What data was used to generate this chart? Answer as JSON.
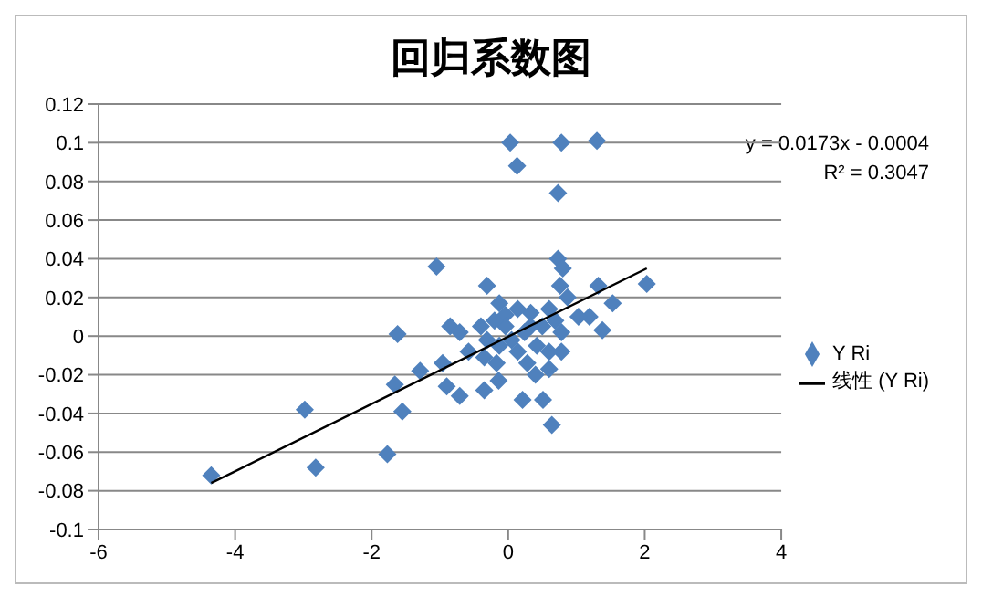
{
  "chart_data": {
    "type": "scatter",
    "title": "回归系数图",
    "xlim": [
      -6,
      4
    ],
    "xticks": [
      -6,
      -4,
      -2,
      0,
      2,
      4
    ],
    "ylim": [
      -0.1,
      0.12
    ],
    "yticks": [
      -0.1,
      -0.08,
      -0.06,
      -0.04,
      -0.02,
      0,
      0.02,
      0.04,
      0.06,
      0.08,
      0.1,
      0.12
    ],
    "grid": "y",
    "legend": "right",
    "annotations": [
      "y = 0.0173x - 0.0004",
      "R² = 0.3047"
    ],
    "series": [
      {
        "name": "Y Ri",
        "marker": "diamond",
        "color": "#4f81bd",
        "x": [
          -4.35,
          -2.98,
          -2.82,
          -1.77,
          -1.62,
          -1.66,
          -1.55,
          -1.29,
          -1.05,
          -0.31,
          0.03,
          0.13,
          0.78,
          1.3,
          0.73,
          0.73,
          0.8,
          0.76,
          1.32,
          2.03,
          1.53,
          1.38,
          1.19,
          1.03,
          0.87,
          0.21,
          0.51,
          0.64,
          0.78,
          0.6,
          0.4,
          0.28,
          -0.17,
          -0.35,
          -0.71,
          -0.9,
          -0.96,
          -0.85,
          -0.71,
          -0.58,
          -0.14,
          -0.35,
          -0.13,
          -0.04,
          0.14,
          0.33,
          0.6,
          0.5,
          0.69,
          0.78,
          0.24,
          0.05,
          -0.13,
          -0.31,
          0.14,
          0.42,
          0.6,
          -0.04,
          0.33,
          -0.4,
          -0.2
        ],
        "values": [
          -0.072,
          -0.038,
          -0.068,
          -0.061,
          0.001,
          -0.025,
          -0.039,
          -0.018,
          0.036,
          0.026,
          0.1,
          0.088,
          0.1,
          0.101,
          0.074,
          0.04,
          0.035,
          0.026,
          0.026,
          0.027,
          0.017,
          0.003,
          0.01,
          0.01,
          0.02,
          -0.033,
          -0.033,
          -0.046,
          -0.008,
          -0.017,
          -0.02,
          -0.014,
          -0.014,
          -0.028,
          -0.031,
          -0.026,
          -0.014,
          0.005,
          0.002,
          -0.008,
          -0.023,
          -0.011,
          0.017,
          0.011,
          0.014,
          0.012,
          0.014,
          0.005,
          0.008,
          0.002,
          0.002,
          -0.002,
          -0.005,
          -0.002,
          -0.008,
          -0.005,
          -0.008,
          0.005,
          0.005,
          0.005,
          0.008
        ]
      },
      {
        "name": "线性 (Y Ri)",
        "type": "line",
        "marker": "none",
        "color": "#000000",
        "x": [
          -4.35,
          2.03
        ],
        "values": [
          -0.076,
          0.035
        ]
      }
    ]
  }
}
